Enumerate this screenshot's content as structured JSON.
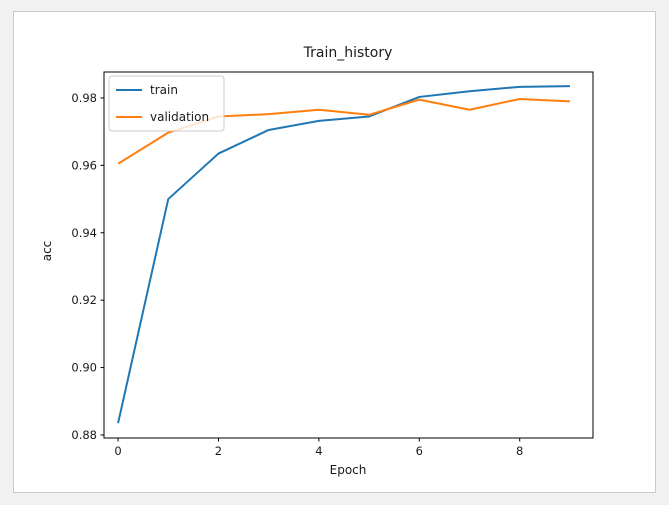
{
  "window": {
    "background": "#f1f1f1",
    "panel_background": "#ffffff",
    "panel_border": "#c9c9c9"
  },
  "chart_data": {
    "type": "line",
    "title": "Train_history",
    "xlabel": "Epoch",
    "ylabel": "acc",
    "x": [
      0,
      1,
      2,
      3,
      4,
      5,
      6,
      7,
      8,
      9
    ],
    "series": [
      {
        "name": "train",
        "color": "#1f77b4",
        "values": [
          0.8835,
          0.95,
          0.9635,
          0.9705,
          0.9732,
          0.9745,
          0.9803,
          0.982,
          0.9833,
          0.9835
        ]
      },
      {
        "name": "validation",
        "color": "#ff7f0e",
        "values": [
          0.9605,
          0.9697,
          0.9745,
          0.9752,
          0.9765,
          0.975,
          0.9795,
          0.9765,
          0.9797,
          0.979
        ]
      }
    ],
    "xticks": [
      0,
      2,
      4,
      6,
      8
    ],
    "yticks": [
      0.88,
      0.9,
      0.92,
      0.94,
      0.96,
      0.98
    ],
    "ytick_labels": [
      "0.88",
      "0.90",
      "0.92",
      "0.94",
      "0.96",
      "0.98"
    ],
    "xlim": [
      -0.28,
      9.46
    ],
    "ylim": [
      0.8791,
      0.9877
    ],
    "grid": false,
    "legend_position": "upper left",
    "axis_color": "#000000",
    "line_width": 2
  }
}
